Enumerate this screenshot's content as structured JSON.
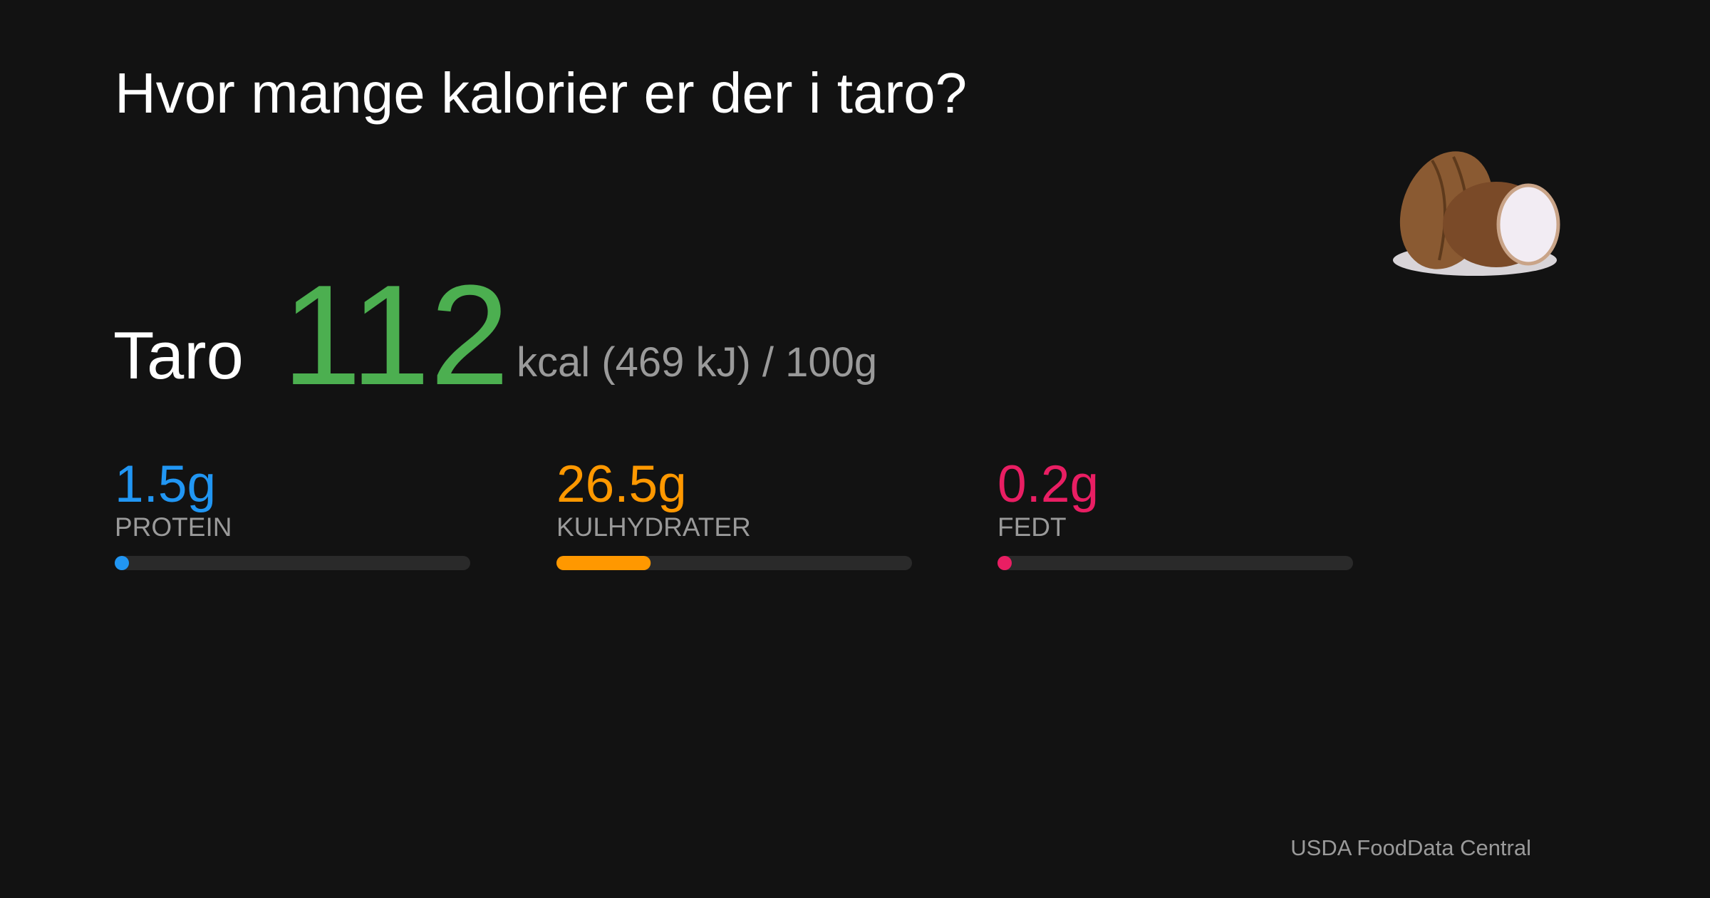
{
  "title": "Hvor mange kalorier er der i taro?",
  "food": "Taro",
  "calories": "112",
  "energy_label": "kcal (469 kJ) /",
  "serving": {
    "value": 100,
    "label": "100g"
  },
  "macros": [
    {
      "name": "PROTEIN",
      "value": 1.5,
      "label": "1.5g",
      "color": "#2196f3"
    },
    {
      "name": "KULHYDRATER",
      "value": 26.5,
      "label": "26.5g",
      "color": "#ff9800"
    },
    {
      "name": "FEDT",
      "value": 0.2,
      "label": "0.2g",
      "color": "#e91e63"
    }
  ],
  "source": "USDA FoodData Central"
}
